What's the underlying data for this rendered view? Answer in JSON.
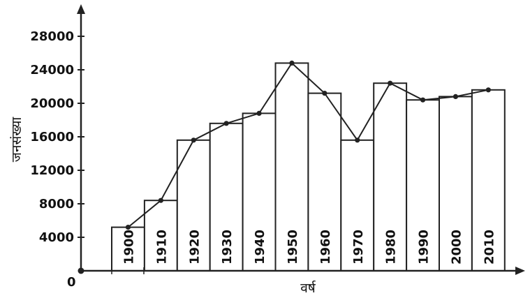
{
  "chart_data": {
    "type": "bar",
    "overlay": "line",
    "categories": [
      "1900",
      "1910",
      "1920",
      "1930",
      "1940",
      "1950",
      "1960",
      "1970",
      "1980",
      "1990",
      "2000",
      "2010"
    ],
    "values": [
      5200,
      8400,
      15600,
      17600,
      18800,
      24800,
      21200,
      15600,
      22400,
      20400,
      20800,
      21600
    ],
    "title": "",
    "xlabel": "वर्ष",
    "ylabel": "जनसंख्या",
    "ylim": [
      0,
      28000
    ],
    "yticks": [
      4000,
      8000,
      12000,
      16000,
      20000,
      24000,
      28000
    ],
    "origin_label": "0",
    "grid": false,
    "colors": {
      "bar_fill": "#ffffff",
      "stroke": "#222222"
    }
  }
}
